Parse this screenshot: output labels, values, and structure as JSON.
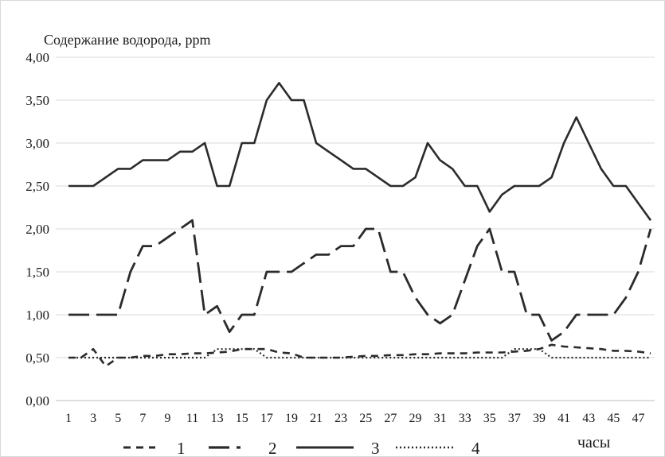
{
  "chart_data": {
    "type": "line",
    "ylabel": "Содержание водорода, ppm",
    "xlabel": "часы",
    "ylim": [
      0,
      4
    ],
    "yticks": [
      "0,00",
      "0,50",
      "1,00",
      "1,50",
      "2,00",
      "2,50",
      "3,00",
      "3,50",
      "4,00"
    ],
    "yticks_values": [
      0,
      0.5,
      1,
      1.5,
      2,
      2.5,
      3,
      3.5,
      4
    ],
    "xlim": [
      1,
      48
    ],
    "xticks": [
      "1",
      "3",
      "5",
      "7",
      "9",
      "11",
      "13",
      "15",
      "17",
      "19",
      "21",
      "23",
      "25",
      "27",
      "29",
      "31",
      "33",
      "35",
      "37",
      "39",
      "41",
      "43",
      "45",
      "47"
    ],
    "grid": "horizontal",
    "legend_position": "bottom",
    "x": [
      1,
      2,
      3,
      4,
      5,
      6,
      7,
      8,
      9,
      10,
      11,
      12,
      13,
      14,
      15,
      16,
      17,
      18,
      19,
      20,
      21,
      22,
      23,
      24,
      25,
      26,
      27,
      28,
      29,
      30,
      31,
      32,
      33,
      34,
      35,
      36,
      37,
      38,
      39,
      40,
      41,
      42,
      43,
      44,
      45,
      46,
      47,
      48
    ],
    "series": [
      {
        "name": "1",
        "style": "short-dash",
        "color": "#2b2b2b",
        "values": [
          0.5,
          0.5,
          0.6,
          0.4,
          0.5,
          0.5,
          0.52,
          0.52,
          0.54,
          0.54,
          0.55,
          0.55,
          0.56,
          0.57,
          0.6,
          0.6,
          0.6,
          0.56,
          0.55,
          0.5,
          0.5,
          0.5,
          0.5,
          0.51,
          0.52,
          0.52,
          0.53,
          0.53,
          0.54,
          0.54,
          0.55,
          0.55,
          0.55,
          0.56,
          0.56,
          0.56,
          0.57,
          0.58,
          0.6,
          0.65,
          0.63,
          0.62,
          0.61,
          0.6,
          0.58,
          0.58,
          0.57,
          0.55
        ]
      },
      {
        "name": "2",
        "style": "long-dash",
        "color": "#2b2b2b",
        "values": [
          1.0,
          1.0,
          1.0,
          1.0,
          1.0,
          1.5,
          1.8,
          1.8,
          1.9,
          2.0,
          2.1,
          1.0,
          1.1,
          0.8,
          1.0,
          1.0,
          1.5,
          1.5,
          1.5,
          1.6,
          1.7,
          1.7,
          1.8,
          1.8,
          2.0,
          2.0,
          1.5,
          1.5,
          1.2,
          1.0,
          0.9,
          1.0,
          1.4,
          1.8,
          2.0,
          1.5,
          1.5,
          1.0,
          1.0,
          0.7,
          0.8,
          1.0,
          1.0,
          1.0,
          1.0,
          1.2,
          1.5,
          2.0
        ]
      },
      {
        "name": "3",
        "style": "solid",
        "color": "#2b2b2b",
        "values": [
          2.5,
          2.5,
          2.5,
          2.6,
          2.7,
          2.7,
          2.8,
          2.8,
          2.8,
          2.9,
          2.9,
          3.0,
          2.5,
          2.5,
          3.0,
          3.0,
          3.5,
          3.7,
          3.5,
          3.5,
          3.0,
          2.9,
          2.8,
          2.7,
          2.7,
          2.6,
          2.5,
          2.5,
          2.6,
          3.0,
          2.8,
          2.7,
          2.5,
          2.5,
          2.2,
          2.4,
          2.5,
          2.5,
          2.5,
          2.6,
          3.0,
          3.3,
          3.0,
          2.7,
          2.5,
          2.5,
          2.3,
          2.1
        ]
      },
      {
        "name": "4",
        "style": "dotted",
        "color": "#2b2b2b",
        "values": [
          0.5,
          0.5,
          0.5,
          0.5,
          0.5,
          0.5,
          0.5,
          0.5,
          0.5,
          0.5,
          0.5,
          0.5,
          0.6,
          0.6,
          0.6,
          0.6,
          0.5,
          0.5,
          0.5,
          0.5,
          0.5,
          0.5,
          0.5,
          0.5,
          0.5,
          0.5,
          0.5,
          0.5,
          0.5,
          0.5,
          0.5,
          0.5,
          0.5,
          0.5,
          0.5,
          0.5,
          0.6,
          0.6,
          0.6,
          0.5,
          0.5,
          0.5,
          0.5,
          0.5,
          0.5,
          0.5,
          0.5,
          0.5
        ]
      }
    ]
  }
}
